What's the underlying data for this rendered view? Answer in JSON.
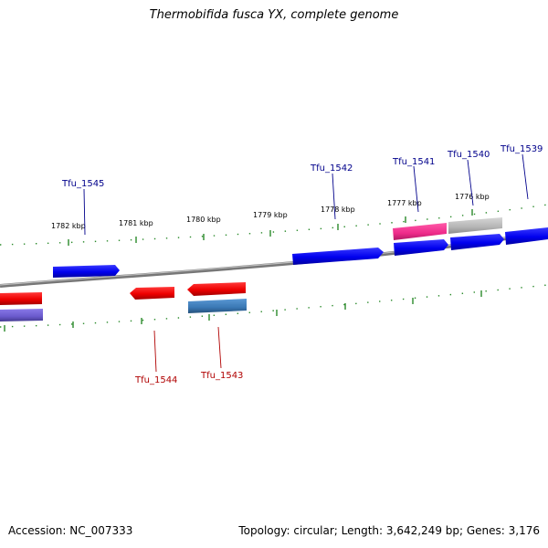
{
  "title": "Thermobifida fusca YX, complete genome",
  "accession_text": "Accession: NC_007333",
  "summary_text": "Topology: circular; Length: 3,642,249 bp; Genes: 3,176",
  "colors": {
    "backbone": "#8a8a8a",
    "tick": "#2a8a2a",
    "forward_label": "#00008b",
    "reverse_label": "#b00000",
    "gene_blue": "#0000ee",
    "gene_red": "#ee0000",
    "gene_pink": "#ee2a8a",
    "gene_gray": "#b4b4b4",
    "gene_slate": "#3a78b4",
    "gene_lavender": "#6a5acd"
  },
  "scale": {
    "unit": "kbp",
    "major_ticks": [
      {
        "kbp": 1782,
        "label": "1782 kbp"
      },
      {
        "kbp": 1781,
        "label": "1781 kbp"
      },
      {
        "kbp": 1780,
        "label": "1780 kbp"
      },
      {
        "kbp": 1779,
        "label": "1779 kbp"
      },
      {
        "kbp": 1778,
        "label": "1778 kbp"
      },
      {
        "kbp": 1777,
        "label": "1777 kbp"
      },
      {
        "kbp": 1776,
        "label": "1776 kbp"
      }
    ]
  },
  "genes": [
    {
      "id": "Tfu_1545",
      "label": "Tfu_1545",
      "strand": "forward",
      "color": "blue"
    },
    {
      "id": "Tfu_1544",
      "label": "Tfu_1544",
      "strand": "reverse",
      "color": "red"
    },
    {
      "id": "Tfu_1543",
      "label": "Tfu_1543",
      "strand": "reverse",
      "color": "red"
    },
    {
      "id": "Tfu_1542",
      "label": "Tfu_1542",
      "strand": "forward",
      "color": "blue"
    },
    {
      "id": "Tfu_1541",
      "label": "Tfu_1541",
      "strand": "forward",
      "color": "blue"
    },
    {
      "id": "Tfu_1540",
      "label": "Tfu_1540",
      "strand": "forward",
      "color": "blue"
    },
    {
      "id": "Tfu_1539",
      "label": "Tfu_1539",
      "strand": "forward",
      "color": "blue"
    }
  ]
}
